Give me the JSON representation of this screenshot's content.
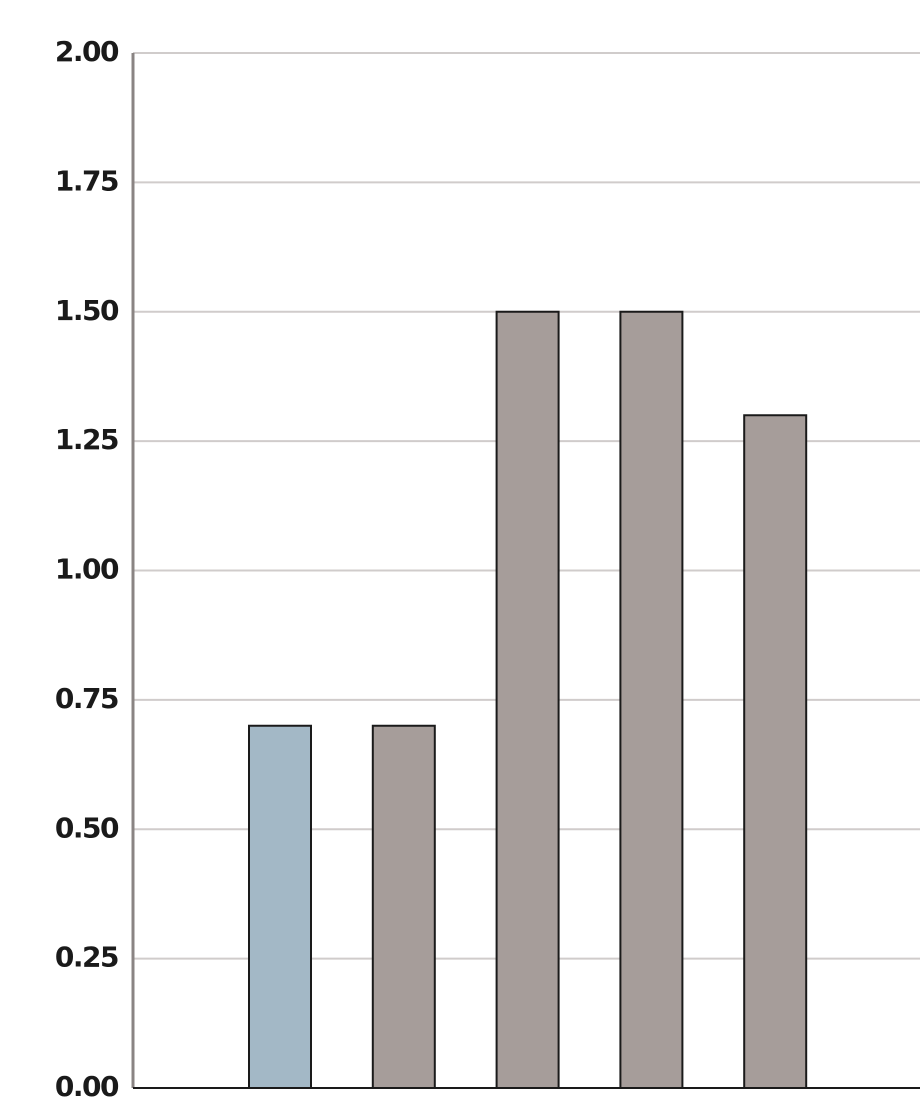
{
  "chart_data": {
    "type": "bar",
    "categories": [
      null,
      null,
      null,
      null,
      null
    ],
    "values": [
      0.7,
      0.7,
      1.5,
      1.5,
      1.3
    ],
    "colors": [
      "#a3b8c6",
      "#a69d9a",
      "#a69d9a",
      "#a69d9a",
      "#a69d9a"
    ],
    "ylim": [
      0,
      2
    ],
    "yticks": [
      {
        "value": 0,
        "label": "0.00"
      },
      {
        "value": 0.25,
        "label": "0.25"
      },
      {
        "value": 0.5,
        "label": "0.50"
      },
      {
        "value": 0.75,
        "label": "0.75"
      },
      {
        "value": 1,
        "label": "1.00"
      },
      {
        "value": 1.25,
        "label": "1.25"
      },
      {
        "value": 1.5,
        "label": "1.50"
      },
      {
        "value": 1.75,
        "label": "1.75"
      },
      {
        "value": 2,
        "label": "2.00"
      }
    ],
    "grid": true
  }
}
